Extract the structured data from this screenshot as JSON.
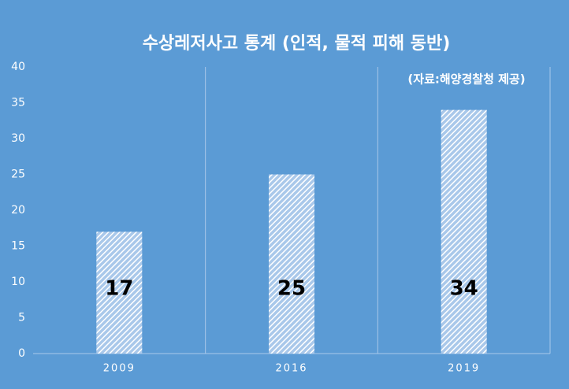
{
  "chart_data": {
    "type": "bar",
    "title": "수상레저사고 통계 (인적, 물적 피해 동반)",
    "subtitle": "(자료:해양경찰청 제공)",
    "categories": [
      "2009",
      "2016",
      "2019"
    ],
    "values": [
      17,
      25,
      34
    ],
    "color": "#ffffff",
    "ylim": [
      0,
      40
    ],
    "yticks": [
      0,
      5,
      10,
      15,
      20,
      25,
      30,
      35,
      40
    ]
  }
}
